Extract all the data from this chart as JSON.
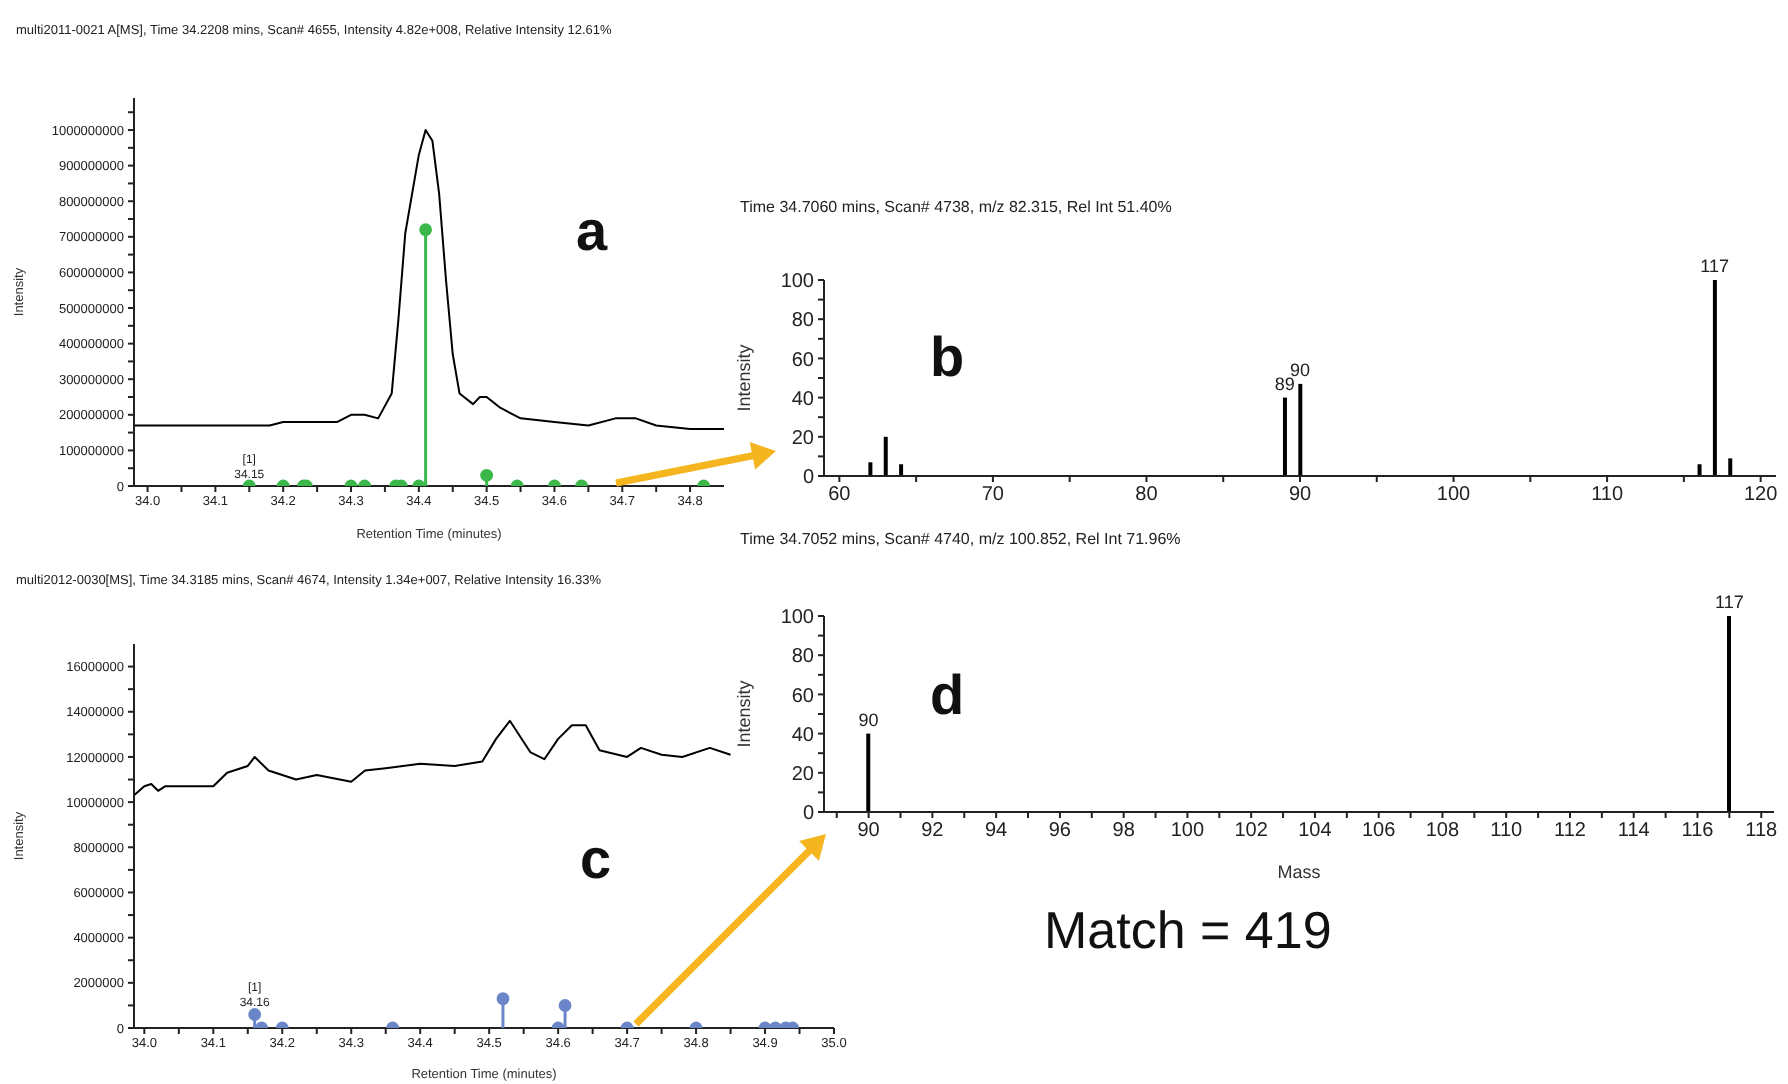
{
  "chart_data": [
    {
      "type": "line",
      "title": "multi2011-0021 A[MS], Time 34.2208 mins, Scan# 4655, Intensity 4.82e+008, Relative Intensity 12.61%",
      "xlabel": "Retention Time (minutes)",
      "ylabel": "Intensity",
      "xlim": [
        33.98,
        34.85
      ],
      "xticks": [
        {
          "value": 34,
          "label": "34.0"
        },
        {
          "value": 34.05,
          "label": null
        },
        34.1,
        {
          "value": 34.15,
          "label": null
        },
        34.2,
        {
          "value": 34.25,
          "label": null
        },
        34.3,
        {
          "value": 34.35,
          "label": null
        },
        34.4,
        {
          "value": 34.45,
          "label": null
        },
        34.5,
        {
          "value": 34.55,
          "label": null
        },
        34.6,
        {
          "value": 34.65,
          "label": null
        },
        34.7,
        {
          "value": 34.75,
          "label": null
        },
        34.8
      ],
      "ylim": [
        0,
        1090000000
      ],
      "yticks": [
        0,
        {
          "value": 50000000,
          "label": null
        },
        100000000,
        {
          "value": 150000000,
          "label": null
        },
        200000000,
        {
          "value": 250000000,
          "label": null
        },
        300000000,
        {
          "value": 350000000,
          "label": null
        },
        400000000,
        {
          "value": 450000000,
          "label": null
        },
        500000000,
        {
          "value": 550000000,
          "label": null
        },
        600000000,
        {
          "value": 650000000,
          "label": null
        },
        700000000,
        {
          "value": 750000000,
          "label": null
        },
        800000000,
        {
          "value": 850000000,
          "label": null
        },
        900000000,
        {
          "value": 950000000,
          "label": null
        },
        1000000000,
        {
          "value": 1050000000,
          "label": null
        }
      ],
      "series": [
        {
          "color": "#000000",
          "x": [
            33.98,
            34.05,
            34.1,
            34.15,
            34.18,
            34.2,
            34.25,
            34.28,
            34.3,
            34.32,
            34.34,
            34.36,
            34.37,
            34.38,
            34.4,
            34.41,
            34.42,
            34.43,
            34.44,
            34.45,
            34.46,
            34.48,
            34.49,
            34.5,
            34.52,
            34.55,
            34.6,
            34.65,
            34.69,
            34.72,
            34.75,
            34.8,
            34.85
          ],
          "values": [
            170000000,
            170000000,
            170000000,
            170000000,
            170000000,
            180000000,
            180000000,
            180000000,
            200000000,
            200000000,
            190000000,
            260000000,
            470000000,
            710000000,
            930000000,
            1000000000,
            970000000,
            820000000,
            580000000,
            370000000,
            260000000,
            230000000,
            250000000,
            250000000,
            220000000,
            190000000,
            180000000,
            170000000,
            190000000,
            190000000,
            170000000,
            160000000,
            160000000
          ]
        },
        {
          "type": "lollipop",
          "color": "#3cb84a",
          "x": [
            34.15,
            34.2,
            34.23,
            34.234,
            34.3,
            34.32,
            34.366,
            34.374,
            34.4,
            34.41,
            34.5,
            34.545,
            34.6,
            34.64,
            34.82
          ],
          "values": [
            0,
            0,
            0,
            0,
            0,
            0,
            0,
            0,
            0,
            720000000,
            30000000,
            0,
            0,
            0,
            0
          ]
        }
      ],
      "annotations": [
        "a",
        {
          "text": "[1]\n34.15",
          "x": 34.15,
          "y": 0
        }
      ]
    },
    {
      "type": "bar",
      "title": "Time 34.7060 mins, Scan# 4738, m/z 82.315, Rel Int 51.40%",
      "ylabel": "Intensity",
      "xlim": [
        59,
        121
      ],
      "xticks": [
        60,
        {
          "value": 65,
          "label": null
        },
        70,
        {
          "value": 75,
          "label": null
        },
        80,
        {
          "value": 85,
          "label": null
        },
        90,
        {
          "value": 95,
          "label": null
        },
        100,
        {
          "value": 105,
          "label": null
        },
        110,
        {
          "value": 115,
          "label": null
        },
        120
      ],
      "ylim": [
        0,
        100
      ],
      "yticks": [
        0,
        {
          "value": 10,
          "label": null
        },
        20,
        {
          "value": 30,
          "label": null
        },
        40,
        {
          "value": 50,
          "label": null
        },
        60,
        {
          "value": 70,
          "label": null
        },
        80,
        {
          "value": 90,
          "label": null
        },
        100
      ],
      "series": [
        {
          "color": "#000000",
          "x": [
            62,
            63,
            64,
            89,
            90,
            116,
            117,
            118
          ],
          "values": [
            7,
            20,
            6,
            40,
            47,
            6,
            100,
            9
          ]
        }
      ],
      "annotations": [
        "b",
        {
          "text": "89",
          "x": 89,
          "y": 40
        },
        {
          "text": "90",
          "x": 90,
          "y": 47
        },
        {
          "text": "117",
          "x": 117,
          "y": 100
        }
      ]
    },
    {
      "type": "line",
      "title": "multi2012-0030[MS], Time 34.3185 mins, Scan# 4674, Intensity 1.34e+007, Relative Intensity 16.33%",
      "xlabel": "Retention Time (minutes)",
      "ylabel": "Intensity",
      "xlim": [
        33.985,
        35.0
      ],
      "xticks": [
        {
          "value": 34,
          "label": "34.0"
        },
        {
          "value": 34.05,
          "label": null
        },
        34.1,
        {
          "value": 34.15,
          "label": null
        },
        34.2,
        {
          "value": 34.25,
          "label": null
        },
        34.3,
        {
          "value": 34.35,
          "label": null
        },
        34.4,
        {
          "value": 34.45,
          "label": null
        },
        34.5,
        {
          "value": 34.55,
          "label": null
        },
        34.6,
        {
          "value": 34.65,
          "label": null
        },
        34.7,
        {
          "value": 34.75,
          "label": null
        },
        34.8,
        {
          "value": 34.85,
          "label": null
        },
        34.9,
        {
          "value": 34.95,
          "label": null
        },
        {
          "value": 35,
          "label": "35.0"
        }
      ],
      "ylim": [
        0,
        17000000
      ],
      "yticks": [
        0,
        {
          "value": 1000000,
          "label": null
        },
        2000000,
        {
          "value": 3000000,
          "label": null
        },
        4000000,
        {
          "value": 5000000,
          "label": null
        },
        6000000,
        {
          "value": 7000000,
          "label": null
        },
        8000000,
        {
          "value": 9000000,
          "label": null
        },
        10000000,
        {
          "value": 11000000,
          "label": null
        },
        12000000,
        {
          "value": 13000000,
          "label": null
        },
        14000000,
        {
          "value": 15000000,
          "label": null
        },
        16000000
      ],
      "series": [
        {
          "color": "#000000",
          "x": [
            33.985,
            34.0,
            34.01,
            34.02,
            34.03,
            34.07,
            34.1,
            34.12,
            34.15,
            34.16,
            34.18,
            34.2,
            34.22,
            34.25,
            34.3,
            34.32,
            34.35,
            34.4,
            34.45,
            34.49,
            34.51,
            34.53,
            34.56,
            34.58,
            34.6,
            34.62,
            34.64,
            34.66,
            34.7,
            34.72,
            34.75,
            34.78,
            34.82,
            34.85
          ],
          "values": [
            10300000,
            10700000,
            10800000,
            10500000,
            10700000,
            10700000,
            10700000,
            11300000,
            11600000,
            12000000,
            11400000,
            11200000,
            11000000,
            11200000,
            10900000,
            11400000,
            11500000,
            11700000,
            11600000,
            11800000,
            12800000,
            13600000,
            12200000,
            11900000,
            12800000,
            13400000,
            13400000,
            12300000,
            12000000,
            12400000,
            12100000,
            12000000,
            12400000,
            12100000
          ]
        },
        {
          "type": "lollipop",
          "color": "#6a86c8",
          "x": [
            34.16,
            34.17,
            34.2,
            34.36,
            34.52,
            34.6,
            34.61,
            34.7,
            34.8,
            34.9,
            34.915,
            34.93,
            34.94
          ],
          "values": [
            600000,
            0,
            0,
            0,
            1300000,
            0,
            1000000,
            0,
            0,
            0,
            0,
            0,
            0
          ]
        }
      ],
      "annotations": [
        "c",
        {
          "text": "[1]\n34.16",
          "x": 34.16,
          "y": 600000
        }
      ]
    },
    {
      "type": "bar",
      "title": "Time 34.7052 mins, Scan# 4740, m/z 100.852, Rel Int 71.96%",
      "xlabel": "Mass",
      "ylabel": "Intensity",
      "xlim": [
        88.6,
        118.4
      ],
      "xticks": [
        {
          "value": 89,
          "label": null
        },
        90,
        {
          "value": 91,
          "label": null
        },
        92,
        {
          "value": 93,
          "label": null
        },
        94,
        {
          "value": 95,
          "label": null
        },
        96,
        {
          "value": 97,
          "label": null
        },
        98,
        {
          "value": 99,
          "label": null
        },
        100,
        {
          "value": 101,
          "label": null
        },
        102,
        {
          "value": 103,
          "label": null
        },
        104,
        {
          "value": 105,
          "label": null
        },
        106,
        {
          "value": 107,
          "label": null
        },
        108,
        {
          "value": 109,
          "label": null
        },
        110,
        {
          "value": 111,
          "label": null
        },
        112,
        {
          "value": 113,
          "label": null
        },
        114,
        {
          "value": 115,
          "label": null
        },
        116,
        {
          "value": 117,
          "label": null
        },
        118
      ],
      "ylim": [
        0,
        100
      ],
      "yticks": [
        0,
        {
          "value": 10,
          "label": null
        },
        20,
        {
          "value": 30,
          "label": null
        },
        40,
        {
          "value": 50,
          "label": null
        },
        60,
        {
          "value": 70,
          "label": null
        },
        80,
        {
          "value": 90,
          "label": null
        },
        100
      ],
      "series": [
        {
          "color": "#000000",
          "x": [
            90,
            117
          ],
          "values": [
            40,
            100
          ]
        }
      ],
      "annotations": [
        "d",
        {
          "text": "90",
          "x": 90,
          "y": 40
        },
        {
          "text": "117",
          "x": 117,
          "y": 100
        },
        "Match = 419"
      ]
    }
  ]
}
